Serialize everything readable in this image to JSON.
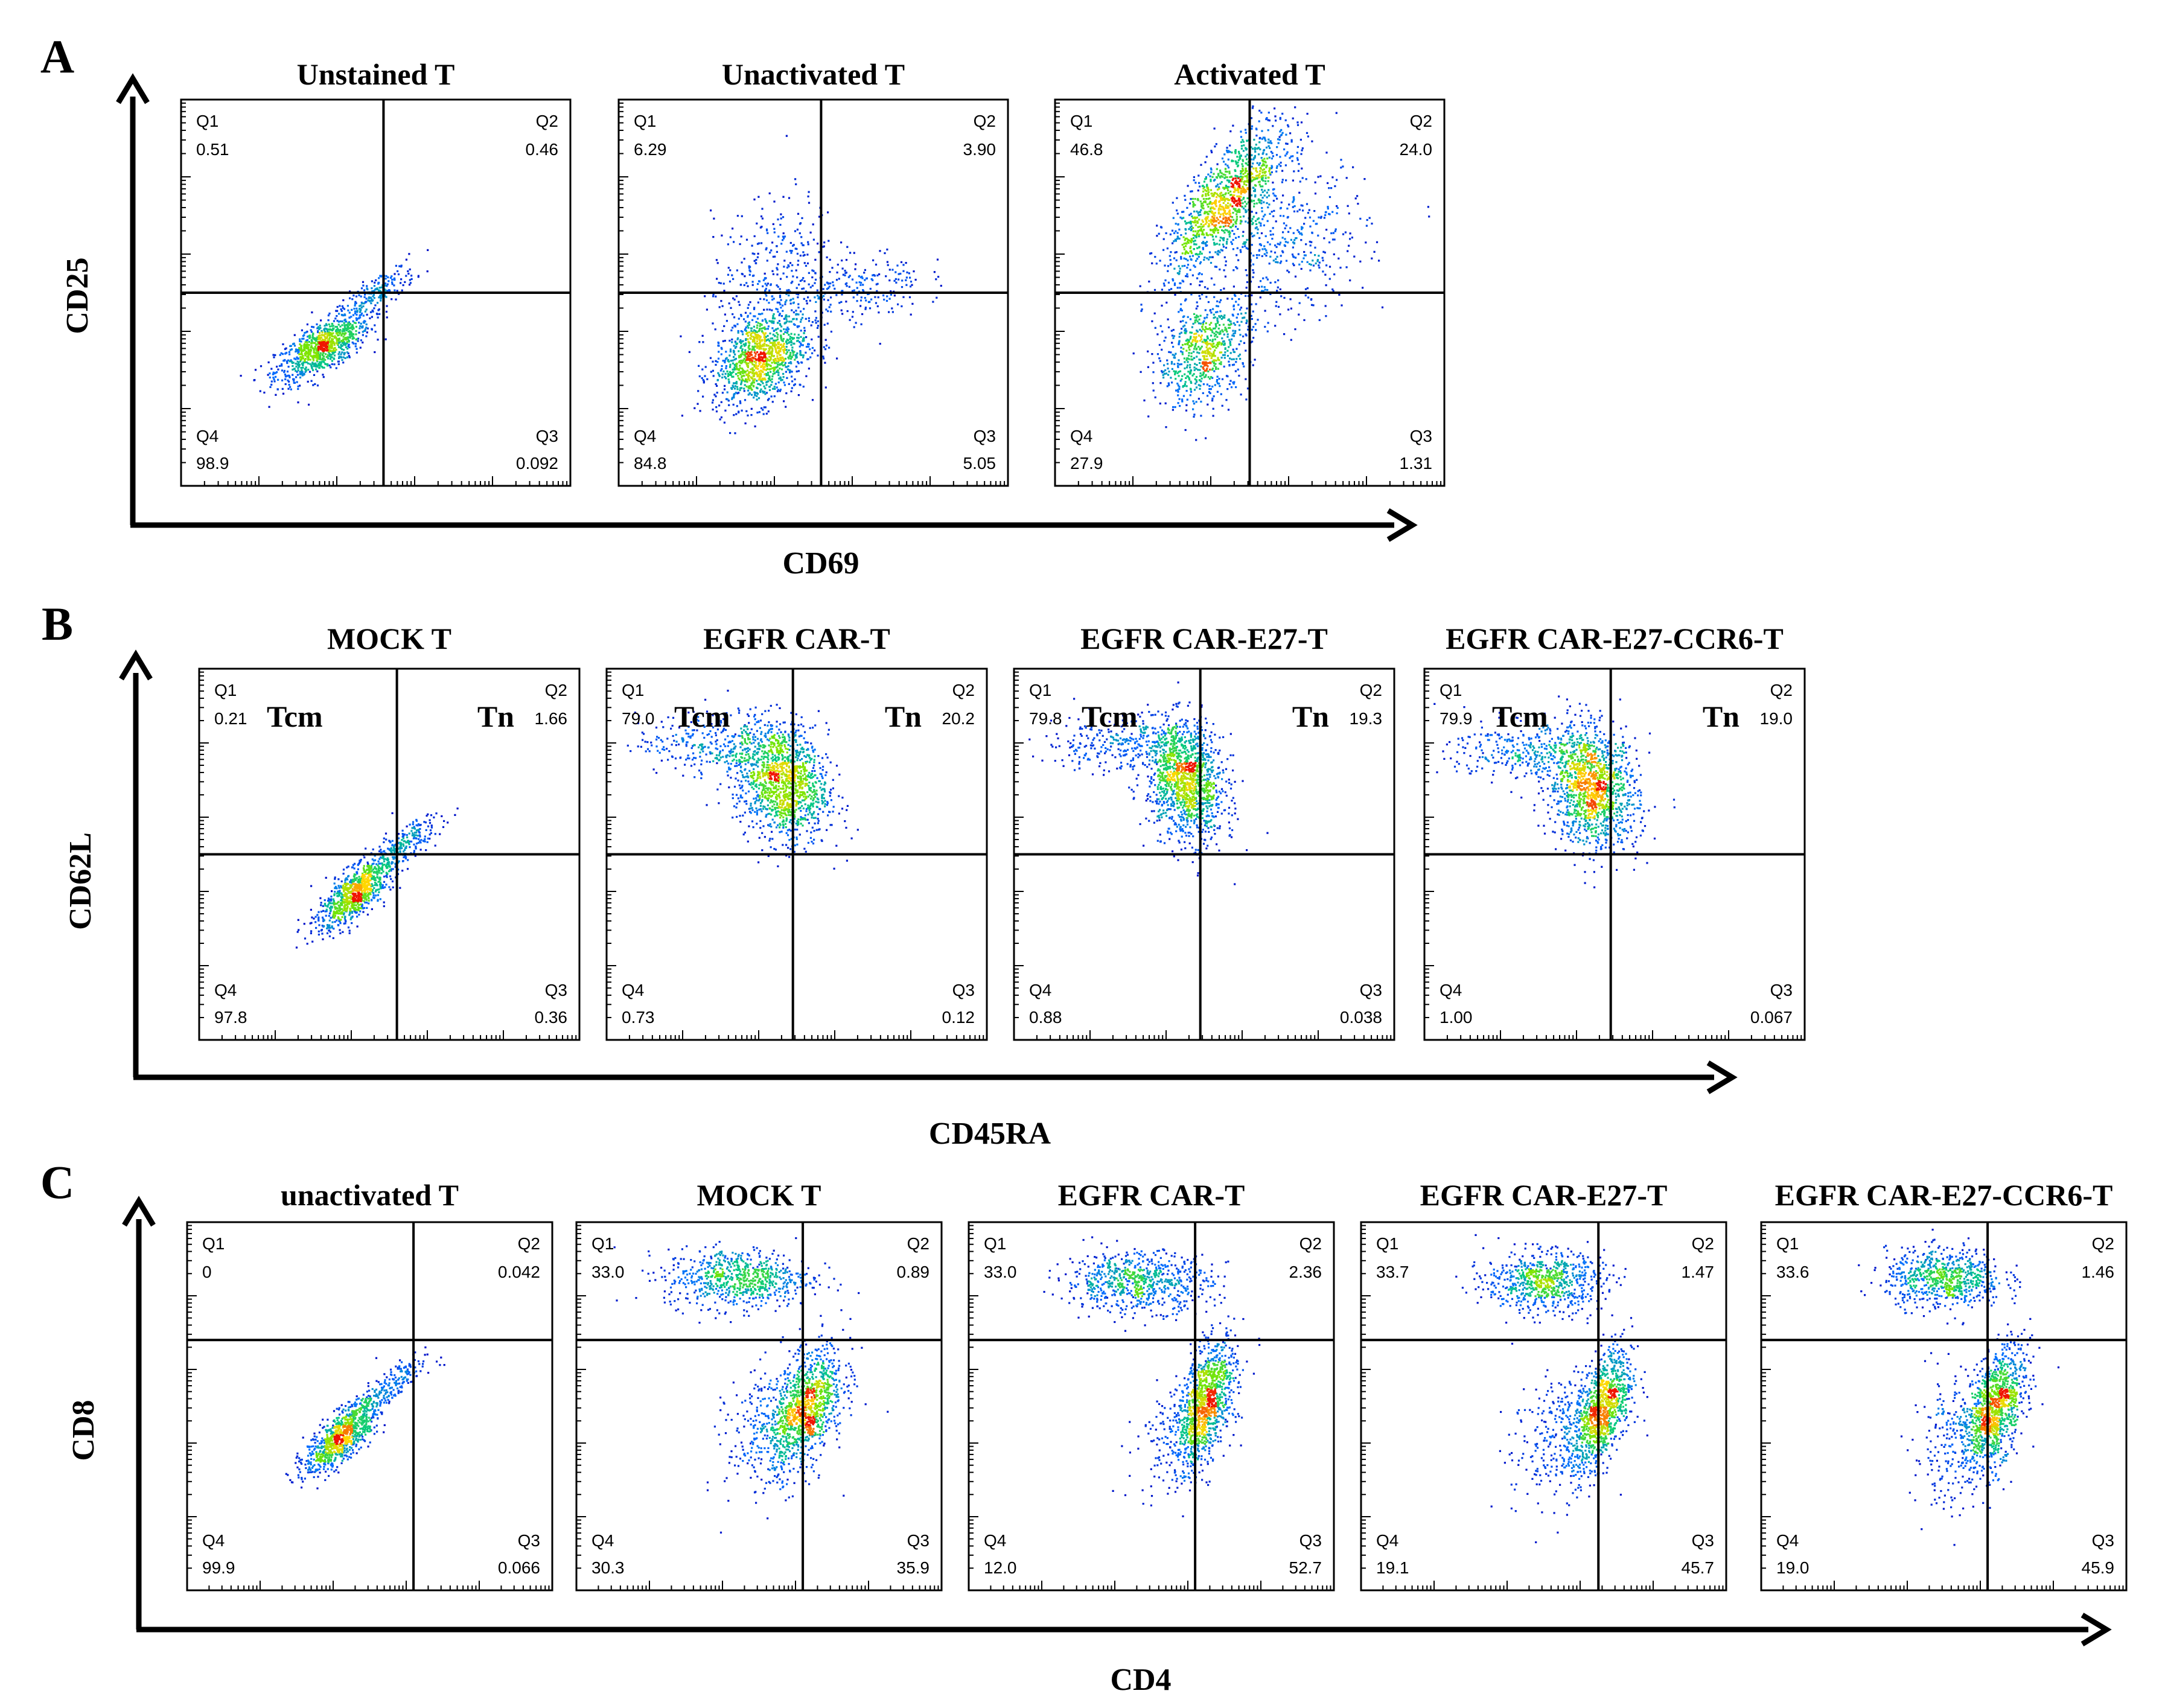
{
  "chart_data": [
    {
      "panel": "A",
      "type": "scatter",
      "subtype": "flow-cytometry-quadrant",
      "xlabel": "CD69",
      "ylabel": "CD25",
      "quadrant_labels": [
        "Q1",
        "Q2",
        "Q3",
        "Q4"
      ],
      "plots": [
        {
          "title": "Unstained T",
          "quadrants": {
            "Q1": "0.51",
            "Q2": "0.46",
            "Q3": "0.092",
            "Q4": "98.9"
          },
          "gate": [
            0.52,
            0.5
          ],
          "populations": [
            {
              "x": 0.36,
              "y": 0.36,
              "sx": 0.06,
              "sy": 0.045,
              "n": 900,
              "rho": 0.7
            },
            {
              "x": 0.5,
              "y": 0.5,
              "sx": 0.05,
              "sy": 0.04,
              "n": 200,
              "rho": 0.8
            }
          ]
        },
        {
          "title": "Unactivated T",
          "quadrants": {
            "Q1": "6.29",
            "Q2": "3.90",
            "Q3": "5.05",
            "Q4": "84.8"
          },
          "gate": [
            0.52,
            0.5
          ],
          "populations": [
            {
              "x": 0.36,
              "y": 0.33,
              "sx": 0.06,
              "sy": 0.06,
              "n": 1100,
              "rho": 0.3
            },
            {
              "x": 0.4,
              "y": 0.55,
              "sx": 0.08,
              "sy": 0.1,
              "n": 350,
              "rho": 0.2
            },
            {
              "x": 0.62,
              "y": 0.51,
              "sx": 0.08,
              "sy": 0.05,
              "n": 200,
              "rho": 0.3
            }
          ]
        },
        {
          "title": "Activated T",
          "quadrants": {
            "Q1": "46.8",
            "Q2": "24.0",
            "Q3": "1.31",
            "Q4": "27.9"
          },
          "gate": [
            0.5,
            0.5
          ],
          "populations": [
            {
              "x": 0.44,
              "y": 0.74,
              "sx": 0.08,
              "sy": 0.1,
              "n": 1200,
              "rho": 0.75
            },
            {
              "x": 0.38,
              "y": 0.35,
              "sx": 0.06,
              "sy": 0.07,
              "n": 700,
              "rho": 0.3
            },
            {
              "x": 0.6,
              "y": 0.62,
              "sx": 0.1,
              "sy": 0.1,
              "n": 400,
              "rho": 0.2
            }
          ]
        }
      ]
    },
    {
      "panel": "B",
      "type": "scatter",
      "subtype": "flow-cytometry-quadrant",
      "xlabel": "CD45RA",
      "ylabel": "CD62L",
      "quadrant_labels": [
        "Q1",
        "Q2",
        "Q3",
        "Q4"
      ],
      "subset_labels": {
        "Q1": "Tcm",
        "Q2": "Tn"
      },
      "plots": [
        {
          "title": "MOCK T",
          "quadrants": {
            "Q1": "0.21",
            "Q2": "1.66",
            "Q3": "0.36",
            "Q4": "97.8"
          },
          "gate": [
            0.52,
            0.5
          ],
          "populations": [
            {
              "x": 0.41,
              "y": 0.4,
              "sx": 0.05,
              "sy": 0.05,
              "n": 900,
              "rho": 0.75
            },
            {
              "x": 0.54,
              "y": 0.53,
              "sx": 0.05,
              "sy": 0.04,
              "n": 200,
              "rho": 0.8
            }
          ]
        },
        {
          "title": "EGFR CAR-T",
          "quadrants": {
            "Q1": "79.0",
            "Q2": "20.2",
            "Q3": "0.12",
            "Q4": "0.73"
          },
          "gate": [
            0.49,
            0.5
          ],
          "populations": [
            {
              "x": 0.46,
              "y": 0.7,
              "sx": 0.06,
              "sy": 0.08,
              "n": 1300,
              "rho": -0.2
            },
            {
              "x": 0.28,
              "y": 0.8,
              "sx": 0.1,
              "sy": 0.04,
              "n": 300,
              "rho": 0.0
            }
          ]
        },
        {
          "title": "EGFR CAR-E27-T",
          "quadrants": {
            "Q1": "79.8",
            "Q2": "19.3",
            "Q3": "0.038",
            "Q4": "0.88"
          },
          "gate": [
            0.49,
            0.5
          ],
          "populations": [
            {
              "x": 0.45,
              "y": 0.7,
              "sx": 0.05,
              "sy": 0.08,
              "n": 1300,
              "rho": -0.2
            },
            {
              "x": 0.28,
              "y": 0.8,
              "sx": 0.1,
              "sy": 0.04,
              "n": 300,
              "rho": 0.0
            }
          ]
        },
        {
          "title": "EGFR CAR-E27-CCR6-T",
          "quadrants": {
            "Q1": "79.9",
            "Q2": "19.0",
            "Q3": "0.067",
            "Q4": "1.00"
          },
          "gate": [
            0.49,
            0.5
          ],
          "populations": [
            {
              "x": 0.44,
              "y": 0.68,
              "sx": 0.06,
              "sy": 0.08,
              "n": 1300,
              "rho": -0.2
            },
            {
              "x": 0.26,
              "y": 0.78,
              "sx": 0.1,
              "sy": 0.04,
              "n": 300,
              "rho": 0.0
            }
          ]
        }
      ]
    },
    {
      "panel": "C",
      "type": "scatter",
      "subtype": "flow-cytometry-quadrant",
      "xlabel": "CD4",
      "ylabel": "CD8",
      "quadrant_labels": [
        "Q1",
        "Q2",
        "Q3",
        "Q4"
      ],
      "plots": [
        {
          "title": "unactivated T",
          "quadrants": {
            "Q1": "0",
            "Q2": "0.042",
            "Q3": "0.066",
            "Q4": "99.9"
          },
          "gate": [
            0.62,
            0.68
          ],
          "populations": [
            {
              "x": 0.42,
              "y": 0.42,
              "sx": 0.05,
              "sy": 0.05,
              "n": 900,
              "rho": 0.75
            },
            {
              "x": 0.55,
              "y": 0.55,
              "sx": 0.05,
              "sy": 0.04,
              "n": 200,
              "rho": 0.8
            }
          ]
        },
        {
          "title": "MOCK T",
          "quadrants": {
            "Q1": "33.0",
            "Q2": "0.89",
            "Q3": "35.9",
            "Q4": "30.3"
          },
          "gate": [
            0.62,
            0.68
          ],
          "populations": [
            {
              "x": 0.44,
              "y": 0.85,
              "sx": 0.1,
              "sy": 0.04,
              "n": 700,
              "rho": 0.0
            },
            {
              "x": 0.63,
              "y": 0.5,
              "sx": 0.05,
              "sy": 0.08,
              "n": 900,
              "rho": 0.5
            },
            {
              "x": 0.55,
              "y": 0.45,
              "sx": 0.07,
              "sy": 0.09,
              "n": 400,
              "rho": 0.3
            }
          ]
        },
        {
          "title": "EGFR CAR-T",
          "quadrants": {
            "Q1": "33.0",
            "Q2": "2.36",
            "Q3": "52.7",
            "Q4": "12.0"
          },
          "gate": [
            0.62,
            0.68
          ],
          "populations": [
            {
              "x": 0.46,
              "y": 0.84,
              "sx": 0.1,
              "sy": 0.04,
              "n": 700,
              "rho": 0.0
            },
            {
              "x": 0.65,
              "y": 0.52,
              "sx": 0.04,
              "sy": 0.08,
              "n": 1000,
              "rho": 0.5
            },
            {
              "x": 0.58,
              "y": 0.42,
              "sx": 0.06,
              "sy": 0.08,
              "n": 250,
              "rho": 0.3
            }
          ]
        },
        {
          "title": "EGFR CAR-E27-T",
          "quadrants": {
            "Q1": "33.7",
            "Q2": "1.47",
            "Q3": "45.7",
            "Q4": "19.1"
          },
          "gate": [
            0.65,
            0.68
          ],
          "populations": [
            {
              "x": 0.5,
              "y": 0.84,
              "sx": 0.08,
              "sy": 0.04,
              "n": 700,
              "rho": 0.0
            },
            {
              "x": 0.66,
              "y": 0.5,
              "sx": 0.04,
              "sy": 0.08,
              "n": 950,
              "rho": 0.5
            },
            {
              "x": 0.55,
              "y": 0.42,
              "sx": 0.07,
              "sy": 0.09,
              "n": 350,
              "rho": 0.3
            }
          ]
        },
        {
          "title": "EGFR CAR-E27-CCR6-T",
          "quadrants": {
            "Q1": "33.6",
            "Q2": "1.46",
            "Q3": "45.9",
            "Q4": "19.0"
          },
          "gate": [
            0.62,
            0.68
          ],
          "populations": [
            {
              "x": 0.5,
              "y": 0.85,
              "sx": 0.08,
              "sy": 0.04,
              "n": 700,
              "rho": 0.0
            },
            {
              "x": 0.64,
              "y": 0.5,
              "sx": 0.04,
              "sy": 0.08,
              "n": 950,
              "rho": 0.5
            },
            {
              "x": 0.55,
              "y": 0.42,
              "sx": 0.07,
              "sy": 0.09,
              "n": 350,
              "rho": 0.3
            }
          ]
        }
      ]
    }
  ],
  "colors": {
    "axis": "#000000",
    "density_low": "#0000cc",
    "density_mid": "#00c060",
    "density_high": "#ff2000"
  }
}
